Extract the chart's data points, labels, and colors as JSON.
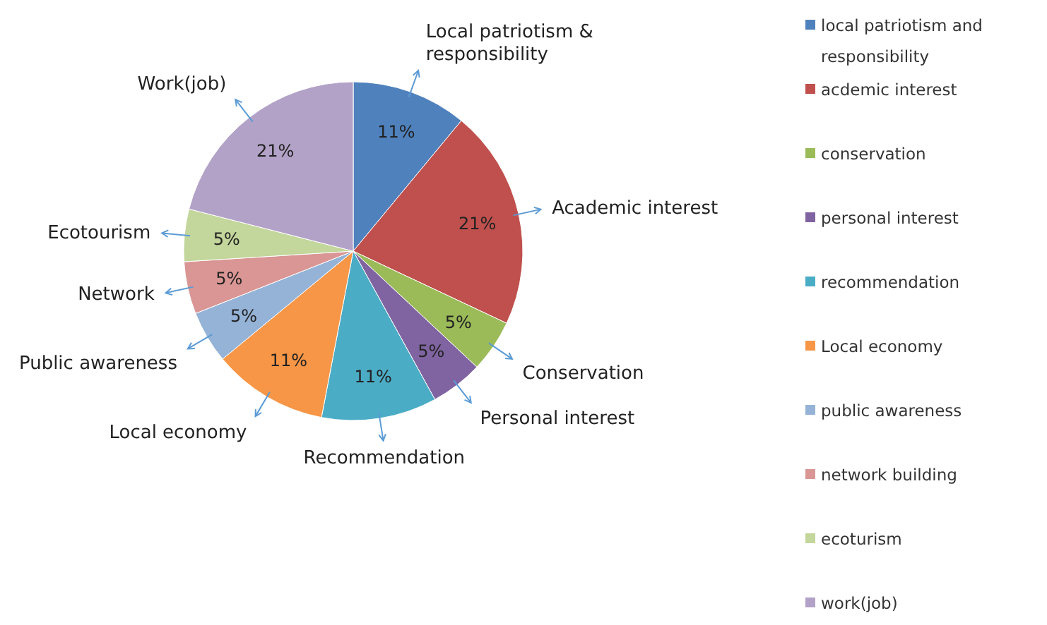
{
  "chart_data": {
    "type": "pie",
    "categories": [
      "local patriotism and responsibility",
      "acdemic interest",
      "conservation",
      "personal interest",
      "recommendation",
      "Local economy",
      "public awareness",
      "network building",
      "ecoturism",
      "work(job)"
    ],
    "values": [
      11,
      21,
      5,
      5,
      11,
      11,
      5,
      5,
      5,
      21
    ],
    "value_labels": [
      "11%",
      "21%",
      "5%",
      "5%",
      "11%",
      "11%",
      "5%",
      "5%",
      "5%",
      "21%"
    ],
    "colors": [
      "#4f81bd",
      "#c0504d",
      "#9bbb59",
      "#8064a2",
      "#4bacc6",
      "#f79646",
      "#95b3d7",
      "#d99694",
      "#c3d69b",
      "#b3a2c7"
    ],
    "legend": "right",
    "annotations": [
      {
        "text": "Local patriotism & responsibility",
        "x": "local patriotism and responsibility"
      },
      {
        "text": "Academic interest",
        "x": "acdemic interest"
      },
      {
        "text": "Conservation",
        "x": "conservation"
      },
      {
        "text": "Personal interest",
        "x": "personal interest"
      },
      {
        "text": "Recommendation",
        "x": "recommendation"
      },
      {
        "text": "Local economy",
        "x": "Local economy"
      },
      {
        "text": "Public awareness",
        "x": "public awareness"
      },
      {
        "text": "Network",
        "x": "network building"
      },
      {
        "text": "Ecotourism",
        "x": "ecoturism"
      },
      {
        "text": "Work(job)",
        "x": "work(job)"
      }
    ]
  }
}
